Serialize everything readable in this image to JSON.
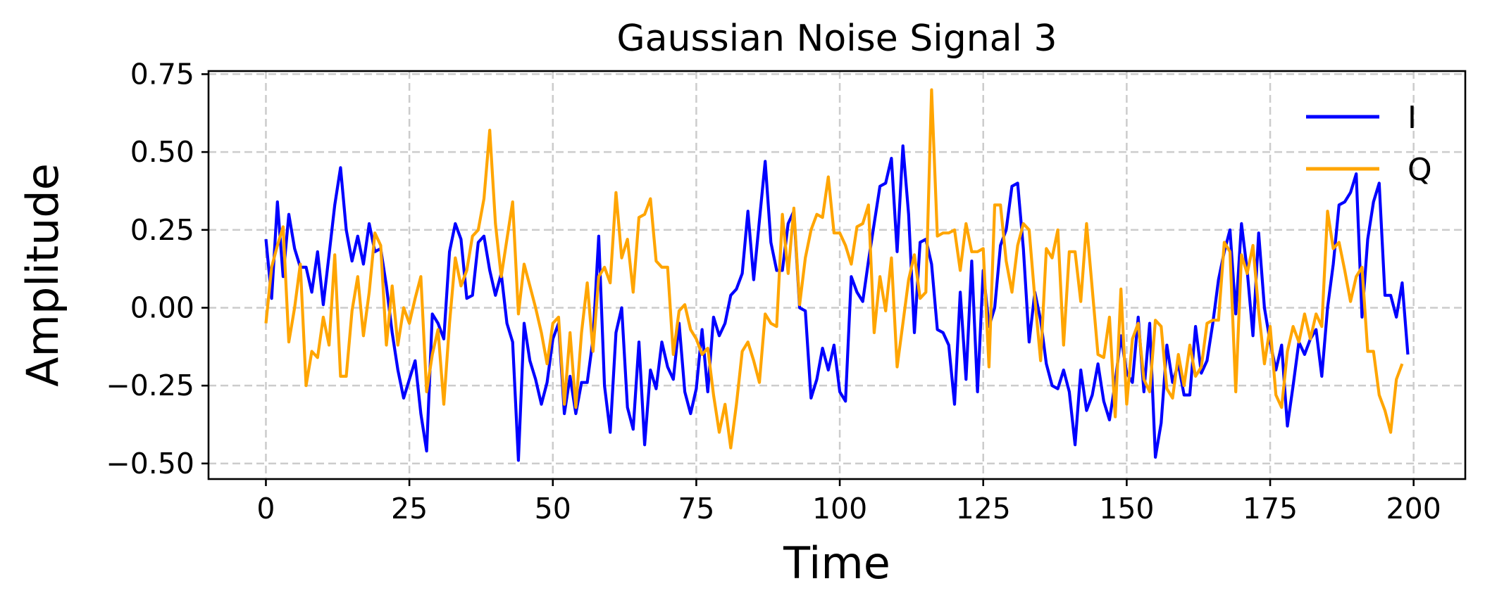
{
  "chart_data": {
    "type": "line",
    "title": "Gaussian Noise Signal 3",
    "xlabel": "Time",
    "ylabel": "Amplitude",
    "xlim": [
      -10,
      209
    ],
    "ylim": [
      -0.55,
      0.76
    ],
    "xticks": [
      0,
      25,
      50,
      75,
      100,
      125,
      150,
      175,
      200
    ],
    "xtick_labels": [
      "0",
      "25",
      "50",
      "75",
      "100",
      "125",
      "150",
      "175",
      "200"
    ],
    "yticks": [
      -0.5,
      -0.25,
      0.0,
      0.25,
      0.5,
      0.75
    ],
    "ytick_labels": [
      "−0.50",
      "−0.25",
      "0.00",
      "0.25",
      "0.50",
      "0.75"
    ],
    "grid": true,
    "legend_position": "top-right",
    "series": [
      {
        "name": "I",
        "color": "#0000ff",
        "values": [
          0.22,
          0.03,
          0.34,
          0.1,
          0.3,
          0.19,
          0.13,
          0.13,
          0.05,
          0.18,
          0.01,
          0.17,
          0.33,
          0.45,
          0.25,
          0.15,
          0.23,
          0.14,
          0.27,
          0.18,
          0.19,
          0.07,
          -0.08,
          -0.2,
          -0.29,
          -0.23,
          -0.17,
          -0.34,
          -0.46,
          -0.02,
          -0.05,
          -0.1,
          0.18,
          0.27,
          0.22,
          0.03,
          0.04,
          0.21,
          0.23,
          0.12,
          0.04,
          0.11,
          -0.05,
          -0.11,
          -0.49,
          -0.05,
          -0.17,
          -0.23,
          -0.31,
          -0.24,
          -0.1,
          -0.05,
          -0.34,
          -0.22,
          -0.34,
          -0.24,
          -0.24,
          -0.1,
          0.23,
          -0.25,
          -0.4,
          -0.08,
          0.0,
          -0.32,
          -0.39,
          -0.11,
          -0.44,
          -0.2,
          -0.26,
          -0.11,
          -0.19,
          -0.23,
          -0.05,
          -0.27,
          -0.34,
          -0.26,
          -0.07,
          -0.27,
          -0.03,
          -0.09,
          -0.05,
          0.04,
          0.06,
          0.11,
          0.31,
          0.09,
          0.28,
          0.47,
          0.21,
          0.12,
          0.12,
          0.27,
          0.31,
          0.0,
          -0.01,
          -0.29,
          -0.23,
          -0.13,
          -0.2,
          -0.12,
          -0.27,
          -0.3,
          0.1,
          0.05,
          0.02,
          0.15,
          0.27,
          0.39,
          0.4,
          0.48,
          0.18,
          0.52,
          0.3,
          -0.08,
          0.21,
          0.22,
          0.14,
          -0.07,
          -0.08,
          -0.12,
          -0.31,
          0.05,
          -0.23,
          0.15,
          -0.27,
          0.12,
          -0.06,
          0.0,
          0.2,
          0.25,
          0.39,
          0.4,
          0.19,
          -0.11,
          0.05,
          -0.04,
          -0.18,
          -0.25,
          -0.26,
          -0.2,
          -0.27,
          -0.44,
          -0.2,
          -0.33,
          -0.28,
          -0.18,
          -0.3,
          -0.36,
          -0.24,
          -0.09,
          -0.21,
          -0.24,
          -0.03,
          -0.27,
          -0.05,
          -0.48,
          -0.37,
          -0.12,
          -0.24,
          -0.18,
          -0.28,
          -0.28,
          -0.06,
          -0.21,
          -0.17,
          -0.05,
          0.09,
          0.18,
          0.25,
          -0.02,
          0.27,
          0.12,
          -0.09,
          0.24,
          0.0,
          -0.11,
          -0.2,
          -0.12,
          -0.38,
          -0.25,
          -0.11,
          -0.15,
          -0.1,
          -0.07,
          -0.22,
          0.0,
          0.14,
          0.33,
          0.34,
          0.37,
          0.43,
          -0.03,
          0.22,
          0.34,
          0.4,
          0.04,
          0.04,
          -0.03,
          0.08,
          -0.15
        ]
      },
      {
        "name": "Q",
        "color": "#ffa500",
        "values": [
          -0.05,
          0.13,
          0.2,
          0.26,
          -0.11,
          0.0,
          0.14,
          -0.25,
          -0.14,
          -0.16,
          -0.03,
          -0.12,
          0.17,
          -0.22,
          -0.22,
          -0.01,
          0.1,
          -0.09,
          0.05,
          0.24,
          0.2,
          -0.12,
          0.07,
          -0.12,
          0.0,
          -0.05,
          0.03,
          0.1,
          -0.27,
          -0.15,
          -0.07,
          -0.31,
          -0.05,
          0.16,
          0.07,
          0.12,
          0.23,
          0.25,
          0.35,
          0.57,
          0.27,
          0.1,
          0.22,
          0.34,
          -0.02,
          0.14,
          0.07,
          0.0,
          -0.08,
          -0.18,
          -0.05,
          -0.03,
          -0.31,
          -0.08,
          -0.32,
          -0.08,
          0.08,
          -0.14,
          0.1,
          0.13,
          0.08,
          0.37,
          0.16,
          0.22,
          0.05,
          0.29,
          0.3,
          0.35,
          0.15,
          0.13,
          0.13,
          -0.15,
          -0.01,
          0.01,
          -0.07,
          -0.1,
          -0.15,
          -0.13,
          -0.28,
          -0.4,
          -0.31,
          -0.45,
          -0.31,
          -0.14,
          -0.11,
          -0.17,
          -0.24,
          -0.02,
          -0.05,
          -0.06,
          0.3,
          0.11,
          0.32,
          0.01,
          0.16,
          0.25,
          0.3,
          0.29,
          0.42,
          0.24,
          0.24,
          0.2,
          0.14,
          0.26,
          0.27,
          0.33,
          -0.08,
          0.1,
          -0.01,
          0.16,
          -0.19,
          -0.05,
          0.09,
          0.17,
          0.03,
          0.05,
          0.7,
          0.23,
          0.24,
          0.24,
          0.25,
          0.12,
          0.27,
          0.18,
          0.18,
          0.19,
          -0.19,
          0.33,
          0.33,
          0.15,
          0.05,
          0.2,
          0.27,
          0.25,
          0.03,
          -0.17,
          0.19,
          0.16,
          0.25,
          -0.12,
          0.18,
          0.18,
          0.02,
          0.27,
          0.06,
          -0.15,
          -0.16,
          -0.03,
          -0.35,
          0.06,
          -0.31,
          -0.1,
          -0.05,
          -0.23,
          -0.27,
          -0.04,
          -0.06,
          -0.26,
          -0.29,
          -0.15,
          -0.25,
          -0.12,
          -0.22,
          -0.19,
          -0.05,
          -0.04,
          -0.04,
          0.21,
          0.18,
          -0.27,
          0.17,
          0.11,
          0.2,
          -0.01,
          -0.18,
          -0.06,
          -0.28,
          -0.32,
          -0.14,
          -0.06,
          -0.11,
          -0.02,
          -0.1,
          -0.02,
          -0.06,
          0.31,
          0.19,
          0.21,
          0.12,
          0.02,
          0.1,
          0.13,
          -0.14,
          -0.14,
          -0.28,
          -0.33,
          -0.4,
          -0.23,
          -0.18
        ]
      }
    ]
  }
}
